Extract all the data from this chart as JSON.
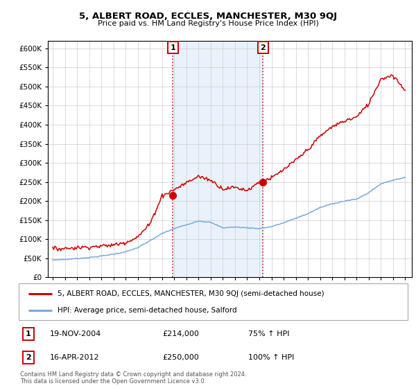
{
  "title": "5, ALBERT ROAD, ECCLES, MANCHESTER, M30 9QJ",
  "subtitle": "Price paid vs. HM Land Registry's House Price Index (HPI)",
  "ylim": [
    0,
    620000
  ],
  "yticks": [
    0,
    50000,
    100000,
    150000,
    200000,
    250000,
    300000,
    350000,
    400000,
    450000,
    500000,
    550000,
    600000
  ],
  "sale1_date_num": 2004.89,
  "sale1_price": 214000,
  "sale1_label": "19-NOV-2004",
  "sale1_amount": "£214,000",
  "sale1_pct": "75% ↑ HPI",
  "sale2_date_num": 2012.29,
  "sale2_price": 250000,
  "sale2_label": "16-APR-2012",
  "sale2_amount": "£250,000",
  "sale2_pct": "100% ↑ HPI",
  "property_color": "#cc0000",
  "hpi_color": "#77aadd",
  "background_color": "#ffffff",
  "grid_color": "#cccccc",
  "legend_property": "5, ALBERT ROAD, ECCLES, MANCHESTER, M30 9QJ (semi-detached house)",
  "legend_hpi": "HPI: Average price, semi-detached house, Salford",
  "footnote1": "Contains HM Land Registry data © Crown copyright and database right 2024.",
  "footnote2": "This data is licensed under the Open Government Licence v3.0.",
  "hpi_years": [
    1995,
    1996,
    1997,
    1998,
    1999,
    2000,
    2001,
    2002,
    2003,
    2004,
    2005,
    2006,
    2007,
    2008,
    2009,
    2010,
    2011,
    2012,
    2013,
    2014,
    2015,
    2016,
    2017,
    2018,
    2019,
    2020,
    2021,
    2022,
    2023,
    2024
  ],
  "hpi_vals": [
    46000,
    47000,
    49500,
    52000,
    56000,
    61000,
    67000,
    78000,
    96000,
    115000,
    128000,
    138000,
    148000,
    144000,
    130000,
    132000,
    130000,
    128000,
    133000,
    143000,
    155000,
    167000,
    183000,
    193000,
    200000,
    205000,
    222000,
    245000,
    255000,
    262000
  ],
  "prop_years": [
    1995,
    1996,
    1997,
    1998,
    1999,
    2000,
    2001,
    2002,
    2003,
    2004,
    2005,
    2006,
    2007,
    2008,
    2009,
    2010,
    2011,
    2012,
    2013,
    2014,
    2015,
    2016,
    2017,
    2018,
    2019,
    2020,
    2021,
    2022,
    2023,
    2024
  ],
  "prop_vals": [
    75000,
    76000,
    78000,
    80000,
    82000,
    85000,
    92000,
    106000,
    140000,
    214000,
    230000,
    248000,
    265000,
    255000,
    232000,
    236000,
    228000,
    250000,
    260000,
    282000,
    307000,
    335000,
    370000,
    395000,
    410000,
    420000,
    455000,
    520000,
    530000,
    490000
  ]
}
